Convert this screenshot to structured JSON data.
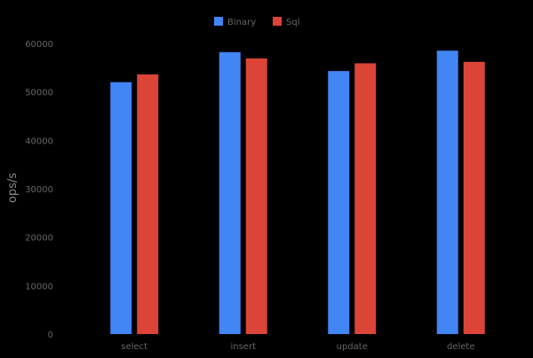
{
  "chart_data": {
    "type": "bar",
    "title": "",
    "xlabel": "",
    "ylabel": "ops/s",
    "categories": [
      "select",
      "insert",
      "update",
      "delete"
    ],
    "series": [
      {
        "name": "Binary",
        "color": "#4285f4",
        "values": [
          52000,
          58200,
          54300,
          58500
        ]
      },
      {
        "name": "Sql",
        "color": "#db4437",
        "values": [
          53600,
          56900,
          55900,
          56200
        ]
      }
    ],
    "ylim": [
      0,
      60000
    ],
    "yticks": [
      "0",
      "10000",
      "20000",
      "30000",
      "40000",
      "50000",
      "60000"
    ],
    "ytick_values": [
      0,
      10000,
      20000,
      30000,
      40000,
      50000,
      60000
    ],
    "grid": false,
    "legend": "top-center",
    "colors": {
      "background": "#000000",
      "text": "#666666",
      "axis_title": "#888888"
    }
  }
}
